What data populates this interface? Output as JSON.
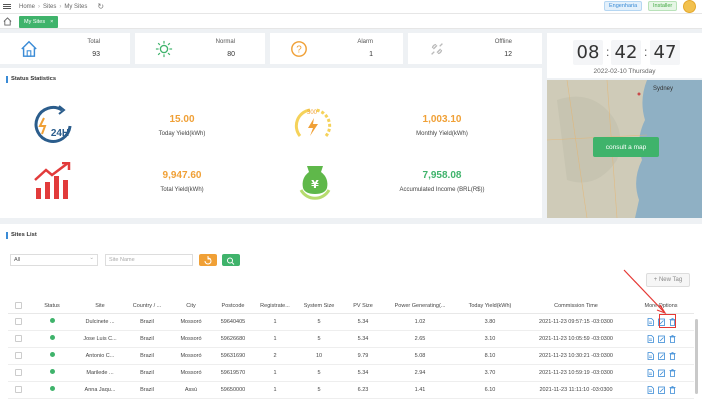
{
  "topbar": {
    "breadcrumbs": [
      "Home",
      "Sites",
      "My Sites"
    ],
    "roles": [
      "Engenharia",
      "Installer"
    ]
  },
  "tabs": [
    {
      "label": "My Sites"
    }
  ],
  "stats": [
    {
      "label": "Total",
      "value": "93",
      "icon": "home-icon",
      "color": "#3a8bd6"
    },
    {
      "label": "Normal",
      "value": "80",
      "icon": "sun-icon",
      "color": "#3fb36b"
    },
    {
      "label": "Alarm",
      "value": "1",
      "icon": "question-icon",
      "color": "#f0a036"
    },
    {
      "label": "Offline",
      "value": "12",
      "icon": "offline-icon",
      "color": "#bbbbbb"
    }
  ],
  "clock": {
    "hh": "08",
    "mm": "42",
    "ss": "47",
    "date": "2022-02-10 Thursday"
  },
  "status_statistics": {
    "title": "Status Statistics",
    "kpis": [
      {
        "value": "15.00",
        "label": "Today Yield(kWh)",
        "icon": "24h-icon",
        "color": "#f0a036"
      },
      {
        "value": "1,003.10",
        "label": "Monthly Yield(kWh)",
        "icon": "monthly-icon",
        "color": "#f0a036"
      },
      {
        "value": "9,947.60",
        "label": "Total Yield(kWh)",
        "icon": "chart-up-icon",
        "color": "#f0a036"
      },
      {
        "value": "7,958.08",
        "label": "Accumulated Income (BRL(R$))",
        "icon": "money-bag-icon",
        "color": "#3fb36b"
      }
    ]
  },
  "map": {
    "button": "consult a map",
    "city_label": "Sydney"
  },
  "sites_list": {
    "title": "Sites List",
    "filter_value": "All",
    "search_placeholder": "Site Name",
    "new_tag": "+ New Tag",
    "columns": [
      "Status",
      "Site",
      "Country / ...",
      "City",
      "Postcode",
      "Registrate...",
      "System Size",
      "PV Size",
      "Power Generating(...",
      "Today Yield(kWh)",
      "Commission Time",
      "More Options"
    ],
    "rows": [
      {
        "site": "Dulcinete ...",
        "country": "Brazil",
        "city": "Mossoró",
        "postcode": "59640405",
        "reg": "1",
        "system": "5",
        "pv": "5.34",
        "power": "1.02",
        "yield": "3.80",
        "time": "2021-11-23 09:57:15 -03:0300"
      },
      {
        "site": "Jose Luis C...",
        "country": "Brazil",
        "city": "Mossoró",
        "postcode": "59626680",
        "reg": "1",
        "system": "5",
        "pv": "5.34",
        "power": "2.65",
        "yield": "3.10",
        "time": "2021-11-23 10:05:59 -03:0300"
      },
      {
        "site": "Antonio C...",
        "country": "Brazil",
        "city": "Mossoró",
        "postcode": "59631690",
        "reg": "2",
        "system": "10",
        "pv": "9.79",
        "power": "5.08",
        "yield": "8.10",
        "time": "2021-11-23 10:30:21 -03:0300"
      },
      {
        "site": "Marilede ...",
        "country": "Brazil",
        "city": "Mossoró",
        "postcode": "59619570",
        "reg": "1",
        "system": "5",
        "pv": "5.34",
        "power": "2.94",
        "yield": "3.70",
        "time": "2021-11-23 10:59:19 -03:0300"
      },
      {
        "site": "Anna Jaqu...",
        "country": "Brazil",
        "city": "Assú",
        "postcode": "59650000",
        "reg": "1",
        "system": "5",
        "pv": "6.23",
        "power": "1.41",
        "yield": "6.10",
        "time": "2021-11-23 11:11:10 -03:0300"
      }
    ]
  }
}
